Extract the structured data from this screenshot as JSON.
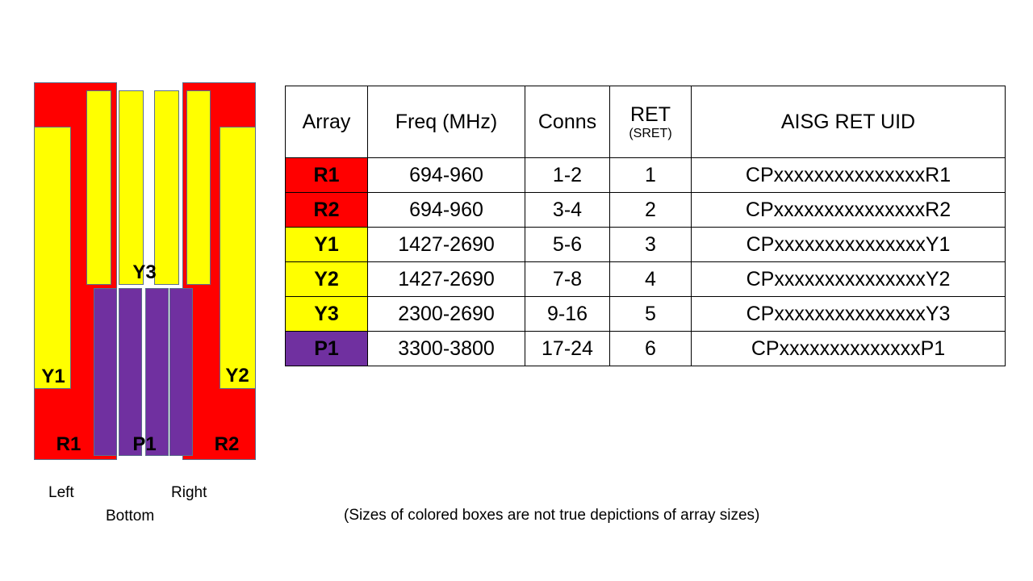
{
  "diagram": {
    "labels": {
      "y3": "Y3",
      "y1": "Y1",
      "y2": "Y2",
      "r1": "R1",
      "p1": "P1",
      "r2": "R2"
    },
    "captions": {
      "left": "Left",
      "bottom": "Bottom",
      "right": "Right"
    },
    "colors": {
      "red": "#ff0000",
      "yellow": "#ffff00",
      "purple": "#7030a0"
    }
  },
  "table": {
    "headers": {
      "array": "Array",
      "freq": "Freq (MHz)",
      "conns": "Conns",
      "ret": "RET",
      "ret_sub": "(SRET)",
      "uid": "AISG RET UID"
    },
    "rows": [
      {
        "array": "R1",
        "freq": "694-960",
        "conns": "1-2",
        "ret": "1",
        "uid": "CPxxxxxxxxxxxxxxxR1",
        "color": "#ff0000"
      },
      {
        "array": "R2",
        "freq": "694-960",
        "conns": "3-4",
        "ret": "2",
        "uid": "CPxxxxxxxxxxxxxxxR2",
        "color": "#ff0000"
      },
      {
        "array": "Y1",
        "freq": "1427-2690",
        "conns": "5-6",
        "ret": "3",
        "uid": "CPxxxxxxxxxxxxxxxY1",
        "color": "#ffff00"
      },
      {
        "array": "Y2",
        "freq": "1427-2690",
        "conns": "7-8",
        "ret": "4",
        "uid": "CPxxxxxxxxxxxxxxxY2",
        "color": "#ffff00"
      },
      {
        "array": "Y3",
        "freq": "2300-2690",
        "conns": "9-16",
        "ret": "5",
        "uid": "CPxxxxxxxxxxxxxxxY3",
        "color": "#ffff00"
      },
      {
        "array": "P1",
        "freq": "3300-3800",
        "conns": "17-24",
        "ret": "6",
        "uid": "CPxxxxxxxxxxxxxxP1",
        "color": "#7030a0"
      }
    ]
  },
  "note": "(Sizes of colored boxes are not true depictions of array sizes)"
}
